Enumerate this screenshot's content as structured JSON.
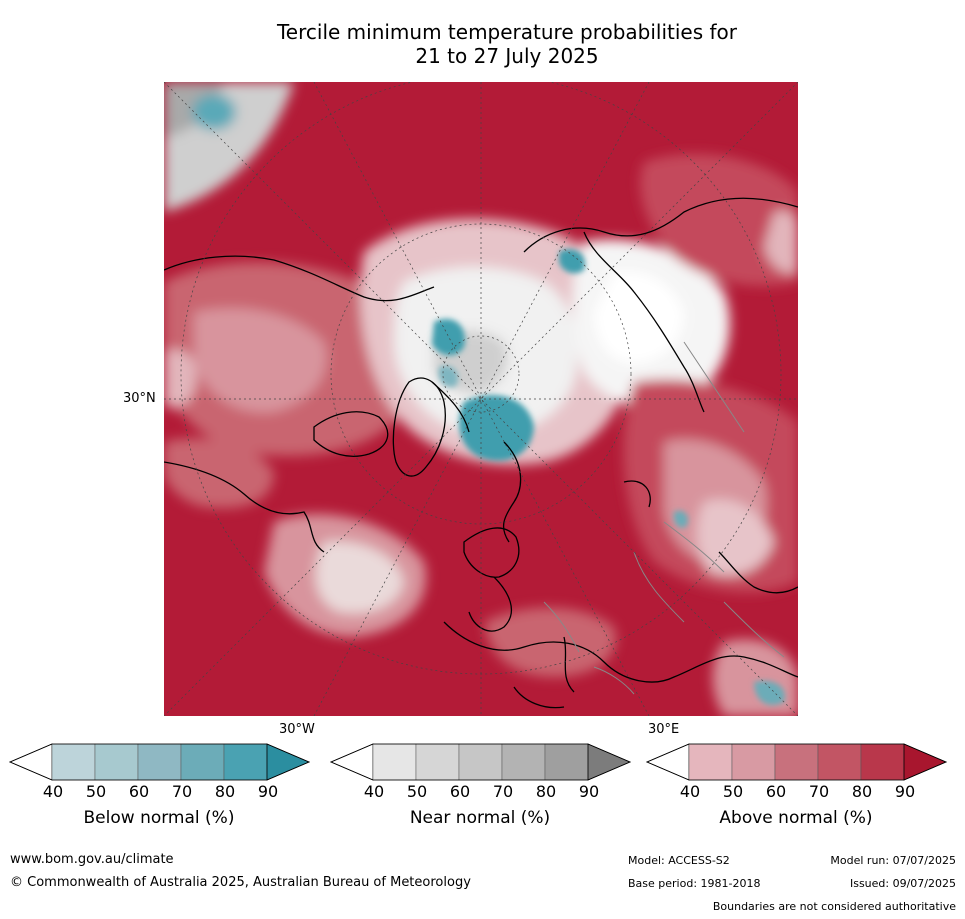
{
  "title_line1": "Tercile minimum temperature probabilities for",
  "title_line2": "21 to 27 July 2025",
  "map": {
    "lat_label": "30°N",
    "lon_label_left": "30°W",
    "lon_label_right": "30°E",
    "palette": {
      "above_dark": "#b31b37",
      "above_mid": "#c44a5c",
      "above_light": "#d8949d",
      "above_pale": "#e7bcc1",
      "near": "#d4d4d4",
      "below": "#3f9eae"
    }
  },
  "colorbars": [
    {
      "title": "Below normal (%)",
      "ticks": [
        "40",
        "50",
        "60",
        "70",
        "80",
        "90"
      ],
      "colors": [
        "#ffffff",
        "#bdd4da",
        "#a7c9cf",
        "#8fb8c3",
        "#6cacb8",
        "#4aa2b2",
        "#2b8ea0"
      ]
    },
    {
      "title": "Near normal (%)",
      "ticks": [
        "40",
        "50",
        "60",
        "70",
        "80",
        "90"
      ],
      "colors": [
        "#ffffff",
        "#e6e6e6",
        "#d6d6d6",
        "#c6c6c6",
        "#b3b3b3",
        "#9f9f9f",
        "#7c7c7c"
      ]
    },
    {
      "title": "Above normal (%)",
      "ticks": [
        "40",
        "50",
        "60",
        "70",
        "80",
        "90"
      ],
      "colors": [
        "#ffffff",
        "#e5b6bd",
        "#d89aa3",
        "#c8717d",
        "#c25564",
        "#b9374b",
        "#a8162e"
      ]
    }
  ],
  "footer": {
    "website": "www.bom.gov.au/climate",
    "copyright": "© Commonwealth of Australia 2025, Australian Bureau of Meteorology",
    "model": "Model: ACCESS-S2",
    "model_run": "Model run: 07/07/2025",
    "base_period": "Base period: 1981-2018",
    "issued": "Issued: 09/07/2025",
    "disclaimer": "Boundaries are not considered authoritative"
  }
}
